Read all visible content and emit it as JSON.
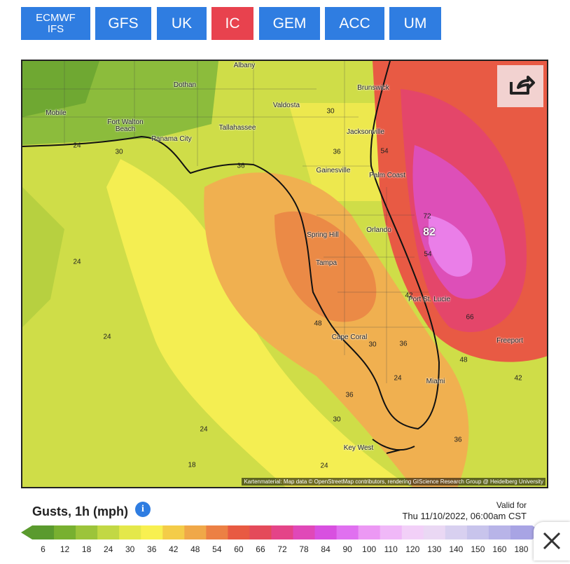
{
  "buttons": [
    {
      "label": "ECMWF IFS",
      "active": false
    },
    {
      "label": "GFS",
      "active": false
    },
    {
      "label": "UK",
      "active": false
    },
    {
      "label": "IC",
      "active": true
    },
    {
      "label": "GEM",
      "active": false
    },
    {
      "label": "ACC",
      "active": false
    },
    {
      "label": "UM",
      "active": false
    }
  ],
  "map": {
    "cities": [
      "Albany",
      "Dothan",
      "Brunswick",
      "Valdosta",
      "Mobile",
      "Fort Walton Beach",
      "Tallahassee",
      "Jacksonville",
      "Panama City",
      "Gainesville",
      "Palm Coast",
      "Spring Hill",
      "Orlando",
      "Tampa",
      "Port St. Lucie",
      "Cape Coral",
      "Freeport",
      "Miami",
      "Key West"
    ],
    "contour_labels": [
      "30",
      "24",
      "30",
      "36",
      "36",
      "54",
      "72",
      "54",
      "24",
      "42",
      "48",
      "66",
      "24",
      "30",
      "36",
      "48",
      "24",
      "42",
      "36",
      "30",
      "24",
      "36",
      "18",
      "24"
    ],
    "peak": "82",
    "attribution": "Kartenmaterial: Map data © OpenStreetMap contributors, rendering GIScience Research Group @ Heidelberg University"
  },
  "legend": {
    "title": "Gusts, 1h (mph)",
    "valid_label": "Valid for",
    "valid_time": "Thu 11/10/2022, 06:00am CST",
    "scale": [
      {
        "label": "6",
        "color": "#5a9a2e"
      },
      {
        "label": "12",
        "color": "#78b030"
      },
      {
        "label": "18",
        "color": "#9cc43a"
      },
      {
        "label": "24",
        "color": "#c2d844"
      },
      {
        "label": "30",
        "color": "#e4e84a"
      },
      {
        "label": "36",
        "color": "#f8f050"
      },
      {
        "label": "42",
        "color": "#f4cc48"
      },
      {
        "label": "48",
        "color": "#f0a848"
      },
      {
        "label": "54",
        "color": "#ec8044"
      },
      {
        "label": "60",
        "color": "#e85a42"
      },
      {
        "label": "66",
        "color": "#e44a5a"
      },
      {
        "label": "72",
        "color": "#e44488"
      },
      {
        "label": "78",
        "color": "#e048b8"
      },
      {
        "label": "84",
        "color": "#d850e0"
      },
      {
        "label": "90",
        "color": "#e070f0"
      },
      {
        "label": "100",
        "color": "#ec98f4"
      },
      {
        "label": "110",
        "color": "#f0b8f8"
      },
      {
        "label": "120",
        "color": "#f2d0f8"
      },
      {
        "label": "130",
        "color": "#ead8f4"
      },
      {
        "label": "140",
        "color": "#d8d0f0"
      },
      {
        "label": "150",
        "color": "#c8c4ec"
      },
      {
        "label": "160",
        "color": "#b8b4e8"
      },
      {
        "label": "180",
        "color": "#a8a4e4"
      }
    ]
  }
}
